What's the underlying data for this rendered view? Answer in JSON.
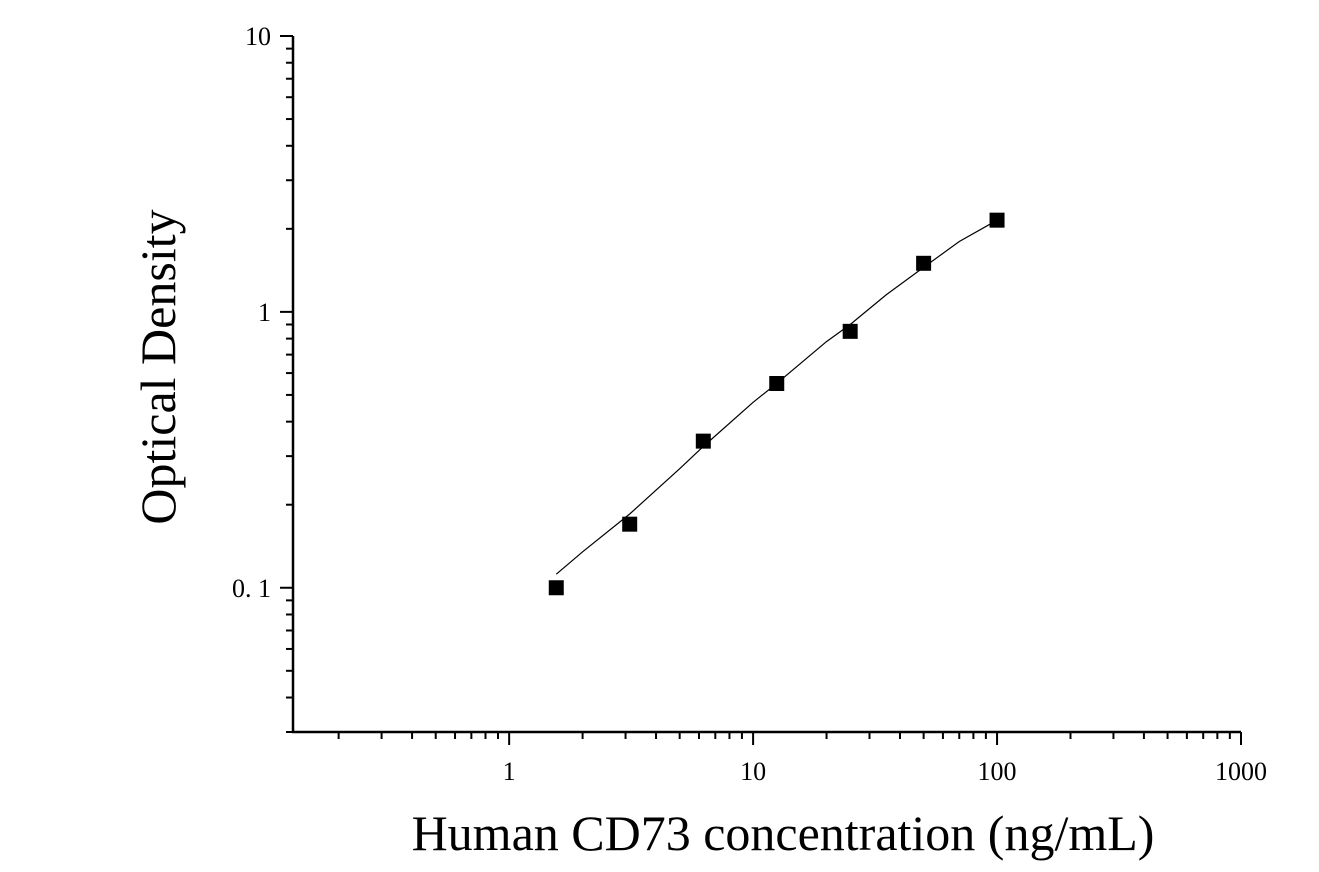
{
  "chart_data": {
    "type": "scatter",
    "title": "",
    "xlabel": "Human CD73 concentration (ng/mL)",
    "ylabel": "Optical Density",
    "x_scale": "log",
    "y_scale": "log",
    "xlim": [
      0.13,
      1000
    ],
    "ylim": [
      0.03,
      10
    ],
    "x_ticks": [
      1,
      10,
      100,
      1000
    ],
    "x_tick_labels": [
      "1",
      "10",
      "100",
      "1000"
    ],
    "y_ticks": [
      0.1,
      1,
      10
    ],
    "y_tick_labels": [
      "0. 1",
      "1",
      "10"
    ],
    "grid": false,
    "legend": "none",
    "marker": "square",
    "color": "#000000",
    "x": [
      1.56,
      3.12,
      6.25,
      12.5,
      25,
      50,
      100
    ],
    "y": [
      0.1,
      0.17,
      0.34,
      0.55,
      0.85,
      1.5,
      2.15
    ],
    "fit_curve": {
      "x": [
        1.56,
        2,
        3.12,
        5,
        6.25,
        10,
        12.5,
        20,
        25,
        35,
        50,
        70,
        100
      ],
      "y": [
        0.112,
        0.135,
        0.185,
        0.27,
        0.325,
        0.47,
        0.55,
        0.78,
        0.9,
        1.15,
        1.45,
        1.8,
        2.15
      ]
    }
  }
}
